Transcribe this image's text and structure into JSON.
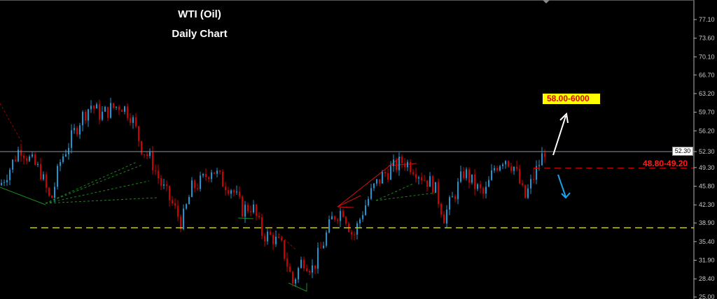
{
  "chart_data": {
    "type": "candlestick",
    "title": "WTI (Oil)",
    "subtitle": "Daily Chart",
    "y_ticks": [
      "77.10",
      "73.60",
      "70.10",
      "66.70",
      "63.20",
      "59.70",
      "56.20",
      "52.30",
      "49.30",
      "45.80",
      "42.30",
      "38.90",
      "35.40",
      "31.90",
      "28.40",
      "25.00"
    ],
    "ylim": [
      25.0,
      77.1
    ],
    "current_price": "52.30",
    "approx_close_path": [
      46.0,
      49.3,
      53.2,
      50.6,
      48.6,
      42.7,
      50.6,
      54.5,
      58.5,
      61.1,
      59.1,
      60.4,
      61.1,
      59.1,
      53.2,
      50.6,
      46.0,
      42.7,
      38.8,
      45.4,
      46.7,
      49.3,
      46.7,
      45.4,
      41.4,
      42.1,
      36.8,
      36.2,
      34.2,
      27.6,
      32.2,
      30.3,
      34.9,
      40.1,
      41.4,
      36.2,
      41.4,
      45.4,
      48.0,
      49.3,
      50.6,
      49.3,
      47.3,
      46.0,
      40.1,
      44.0,
      48.6,
      46.0,
      44.0,
      49.3,
      51.3,
      49.3,
      43.4,
      48.0,
      52.6
    ],
    "horizontal_levels": {
      "resistance": 52.3,
      "support_zone": 49.2,
      "support_floor": 38.0
    },
    "annotations": {
      "target_label": "58.00-6000",
      "support_label": "48.80-49.20"
    },
    "colors": {
      "up_candle": "#1e96d2",
      "down_candle": "#d00000",
      "background": "#000000",
      "target_box": "#ffff00",
      "support_dash": "#b40000",
      "floor_dash": "#c8c800",
      "up_arrow": "#ffffff",
      "down_arrow": "#1ea0e6"
    },
    "grid": false
  }
}
